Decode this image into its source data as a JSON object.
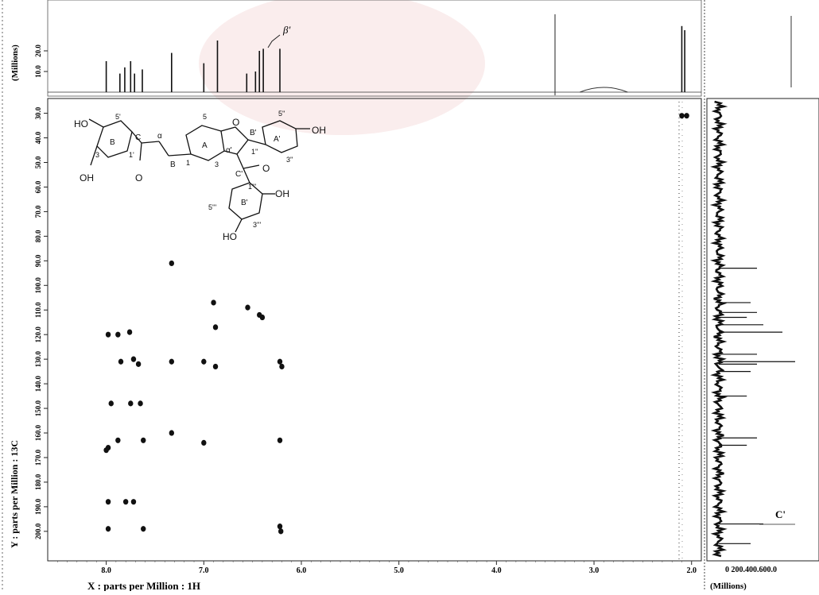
{
  "chart_data": {
    "type": "heatmap",
    "subtype": "2D NMR HMBC spectrum with 1D projections",
    "x_axis": {
      "label": "X : parts per Million : 1H",
      "range": [
        1.9,
        8.6
      ],
      "reversed": true,
      "ticks": [
        "8.0",
        "7.0",
        "6.0",
        "5.0",
        "4.0",
        "3.0",
        "2.0"
      ],
      "tick_values": [
        8.0,
        7.0,
        6.0,
        5.0,
        4.0,
        3.0,
        2.0
      ]
    },
    "y_axis": {
      "label": "Y : parts per Million : 13C",
      "range": [
        24,
        212
      ],
      "reversed": true,
      "ticks": [
        "30.0",
        "40.0",
        "50.0",
        "60.0",
        "70.0",
        "80.0",
        "90.0",
        "100.0",
        "110.0",
        "120.0",
        "130.0",
        "140.0",
        "150.0",
        "160.0",
        "170.0",
        "180.0",
        "190.0",
        "200.0"
      ],
      "tick_values": [
        30,
        40,
        50,
        60,
        70,
        80,
        90,
        100,
        110,
        120,
        130,
        140,
        150,
        160,
        170,
        180,
        190,
        200
      ]
    },
    "top_projection": {
      "axis_label": "(Millions)",
      "ticks": [
        "10.0",
        "20.0"
      ],
      "tick_values": [
        10,
        20
      ],
      "annotation": "β'",
      "peaks": [
        {
          "x": 8.0,
          "h": 15
        },
        {
          "x": 7.86,
          "h": 9
        },
        {
          "x": 7.81,
          "h": 12
        },
        {
          "x": 7.75,
          "h": 15
        },
        {
          "x": 7.71,
          "h": 9
        },
        {
          "x": 7.63,
          "h": 11
        },
        {
          "x": 7.33,
          "h": 19
        },
        {
          "x": 7.0,
          "h": 14
        },
        {
          "x": 6.86,
          "h": 25
        },
        {
          "x": 6.56,
          "h": 9
        },
        {
          "x": 6.47,
          "h": 10
        },
        {
          "x": 6.43,
          "h": 20
        },
        {
          "x": 6.39,
          "h": 21
        },
        {
          "x": 6.22,
          "h": 21
        },
        {
          "x": 2.1,
          "h": 32
        },
        {
          "x": 2.07,
          "h": 30
        }
      ]
    },
    "side_projection": {
      "axis_label": "(Millions)",
      "ticks": "0 200.400.600.0",
      "annotation": "C'",
      "peaks": [
        {
          "y": 93,
          "h": 30
        },
        {
          "y": 107,
          "h": 25
        },
        {
          "y": 111,
          "h": 30
        },
        {
          "y": 113,
          "h": 22
        },
        {
          "y": 116,
          "h": 35
        },
        {
          "y": 119,
          "h": 50
        },
        {
          "y": 128,
          "h": 30
        },
        {
          "y": 131,
          "h": 60
        },
        {
          "y": 132,
          "h": 30
        },
        {
          "y": 135,
          "h": 25
        },
        {
          "y": 145,
          "h": 22
        },
        {
          "y": 162,
          "h": 30
        },
        {
          "y": 165,
          "h": 22
        },
        {
          "y": 197,
          "h": 35
        },
        {
          "y": 205,
          "h": 25
        }
      ]
    },
    "cross_peaks": [
      {
        "x": 7.33,
        "y": 91
      },
      {
        "x": 6.9,
        "y": 107
      },
      {
        "x": 6.55,
        "y": 109
      },
      {
        "x": 6.43,
        "y": 112
      },
      {
        "x": 6.4,
        "y": 113
      },
      {
        "x": 6.88,
        "y": 117
      },
      {
        "x": 7.98,
        "y": 120
      },
      {
        "x": 7.88,
        "y": 120
      },
      {
        "x": 7.76,
        "y": 119
      },
      {
        "x": 7.85,
        "y": 131
      },
      {
        "x": 7.72,
        "y": 130
      },
      {
        "x": 7.67,
        "y": 132
      },
      {
        "x": 7.33,
        "y": 131
      },
      {
        "x": 7.0,
        "y": 131
      },
      {
        "x": 6.88,
        "y": 133
      },
      {
        "x": 6.22,
        "y": 131
      },
      {
        "x": 6.2,
        "y": 133
      },
      {
        "x": 7.95,
        "y": 148
      },
      {
        "x": 7.75,
        "y": 148
      },
      {
        "x": 7.65,
        "y": 148
      },
      {
        "x": 7.33,
        "y": 160
      },
      {
        "x": 7.0,
        "y": 164
      },
      {
        "x": 7.98,
        "y": 166
      },
      {
        "x": 8.0,
        "y": 167
      },
      {
        "x": 7.88,
        "y": 163
      },
      {
        "x": 7.62,
        "y": 163
      },
      {
        "x": 6.22,
        "y": 163
      },
      {
        "x": 7.98,
        "y": 188
      },
      {
        "x": 7.8,
        "y": 188
      },
      {
        "x": 7.72,
        "y": 188
      },
      {
        "x": 7.98,
        "y": 199
      },
      {
        "x": 7.62,
        "y": 199
      },
      {
        "x": 6.22,
        "y": 198
      },
      {
        "x": 6.21,
        "y": 200
      },
      {
        "x": 2.1,
        "y": 31
      },
      {
        "x": 2.05,
        "y": 31
      }
    ]
  },
  "molecule_labels": {
    "ho_b": "HO",
    "h5p": "5'",
    "ring_b": "B",
    "h3": "3",
    "h1": "1'",
    "carbonyl_c": "C",
    "alpha": "α",
    "beta": "B",
    "oh_b": "OH",
    "o_b": "O",
    "h5": "5",
    "ring_a": "A",
    "h1a": "1",
    "h3a": "3",
    "o_furan": "O",
    "bprime": "B'",
    "alphaprime": "α'",
    "h1pp": "1''",
    "ring_aprime": "A'",
    "h5pp": "5''",
    "oh_aprime": "OH",
    "h3pp": "3''",
    "cprime": "C'",
    "o_c": "O",
    "h1ppp": "1'''",
    "oh_bp": "OH",
    "h5ppp": "5'''",
    "ring_bprime": "B'",
    "h3ppp": "3'''",
    "ho_bp": "HO"
  }
}
